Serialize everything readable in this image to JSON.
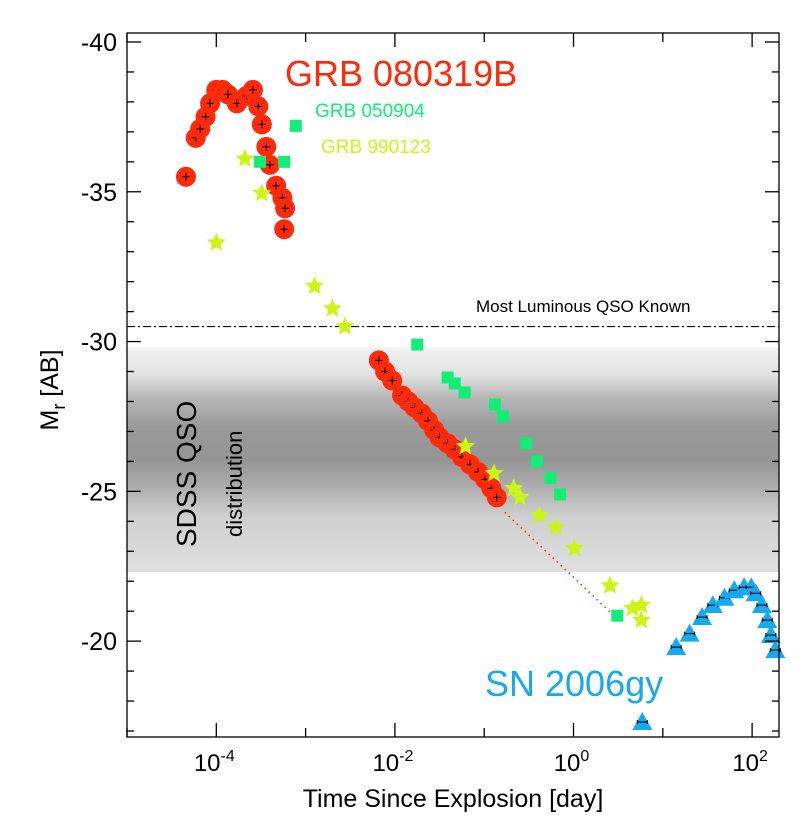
{
  "chart_data": {
    "type": "scatter",
    "xlabel": "Time Since Explosion [day]",
    "ylabel": "M",
    "ylabel_sub": "r",
    "ylabel_suffix": " [AB]",
    "x_scale": "log",
    "xlim": [
      1e-05,
      200
    ],
    "ylim": [
      -16.8,
      -40.3
    ],
    "x_ticks": [
      {
        "base": "10",
        "exp": "-4",
        "value": 0.0001
      },
      {
        "base": "10",
        "exp": "-2",
        "value": 0.01
      },
      {
        "base": "10",
        "exp": "0",
        "value": 1
      },
      {
        "base": "10",
        "exp": "2",
        "value": 100
      }
    ],
    "y_ticks": [
      -40,
      -35,
      -30,
      -25,
      -20
    ],
    "grid": false,
    "annotations": {
      "qso_line": {
        "label": "Most Luminous QSO Known",
        "y": -30.5
      },
      "qso_band": {
        "label_main": "SDSS QSO",
        "label_sub": "distribution",
        "y_range": [
          -29.8,
          -22.3
        ],
        "peak_range": [
          -28,
          -25.3
        ]
      }
    },
    "series": [
      {
        "name": "GRB 080319B",
        "color": "#ff2a0a",
        "marker": "circle",
        "points": [
          [
            -4.34,
            -35.5
          ],
          [
            -4.23,
            -36.8
          ],
          [
            -4.18,
            -37.1
          ],
          [
            -4.12,
            -37.5
          ],
          [
            -4.07,
            -37.95
          ],
          [
            -4.0,
            -38.4
          ],
          [
            -3.93,
            -38.4
          ],
          [
            -3.87,
            -38.25
          ],
          [
            -3.77,
            -37.95
          ],
          [
            -3.66,
            -38.2
          ],
          [
            -3.59,
            -38.4
          ],
          [
            -3.53,
            -37.85
          ],
          [
            -3.49,
            -37.25
          ],
          [
            -3.44,
            -36.5
          ],
          [
            -3.4,
            -35.9
          ],
          [
            -3.33,
            -35.2
          ],
          [
            -3.26,
            -34.8
          ],
          [
            -3.23,
            -34.45
          ],
          [
            -3.24,
            -33.75
          ],
          [
            -2.18,
            -29.37
          ],
          [
            -2.11,
            -29.0
          ],
          [
            -2.03,
            -28.7
          ],
          [
            -1.92,
            -28.2
          ],
          [
            -1.85,
            -28.0
          ],
          [
            -1.78,
            -27.8
          ],
          [
            -1.7,
            -27.6
          ],
          [
            -1.63,
            -27.35
          ],
          [
            -1.56,
            -27.05
          ],
          [
            -1.5,
            -26.8
          ],
          [
            -1.41,
            -26.6
          ],
          [
            -1.33,
            -26.4
          ],
          [
            -1.25,
            -26.15
          ],
          [
            -1.16,
            -25.9
          ],
          [
            -1.07,
            -25.65
          ],
          [
            -0.99,
            -25.4
          ],
          [
            -0.92,
            -25.1
          ],
          [
            -0.86,
            -24.8
          ]
        ],
        "extrapolation": [
          [
            -0.77,
            -24.3
          ],
          [
            0.47,
            -20.8
          ]
        ],
        "x_note": "x values are log10(day)"
      },
      {
        "name": "GRB 050904",
        "color": "#11ee77",
        "marker": "square",
        "points": [
          [
            -3.11,
            -37.2
          ],
          [
            -3.51,
            -36.0
          ],
          [
            -3.24,
            -36.0
          ],
          [
            -1.75,
            -29.9
          ],
          [
            -1.41,
            -28.8
          ],
          [
            -1.33,
            -28.6
          ],
          [
            -1.22,
            -28.3
          ],
          [
            -0.88,
            -27.9
          ],
          [
            -0.79,
            -27.5
          ],
          [
            -0.53,
            -26.6
          ],
          [
            -0.41,
            -26.0
          ],
          [
            -0.26,
            -25.45
          ],
          [
            -0.15,
            -24.9
          ],
          [
            0.49,
            -20.85
          ]
        ]
      },
      {
        "name": "GRB 990123",
        "color": "#ccf514",
        "marker": "star",
        "points": [
          [
            -4.0,
            -33.3
          ],
          [
            -3.68,
            -36.1
          ],
          [
            -3.49,
            -34.95
          ],
          [
            -2.9,
            -31.85
          ],
          [
            -2.7,
            -31.1
          ],
          [
            -2.56,
            -30.5
          ],
          [
            -1.21,
            -26.5
          ],
          [
            -0.89,
            -25.6
          ],
          [
            -0.67,
            -25.1
          ],
          [
            -0.6,
            -24.8
          ],
          [
            -0.38,
            -24.2
          ],
          [
            -0.2,
            -23.8
          ],
          [
            0.01,
            -23.1
          ],
          [
            0.41,
            -21.85
          ],
          [
            0.66,
            -21.1
          ],
          [
            0.76,
            -21.2
          ],
          [
            0.76,
            -20.7
          ]
        ]
      },
      {
        "name": "SN 2006gy",
        "color": "#18a8ee",
        "marker": "triangle",
        "points": [
          [
            0.77,
            -17.3
          ],
          [
            1.15,
            -19.8
          ],
          [
            1.3,
            -20.25
          ],
          [
            1.44,
            -20.8
          ],
          [
            1.56,
            -21.2
          ],
          [
            1.69,
            -21.45
          ],
          [
            1.8,
            -21.7
          ],
          [
            1.91,
            -21.8
          ],
          [
            1.99,
            -21.8
          ],
          [
            2.04,
            -21.6
          ],
          [
            2.11,
            -21.2
          ],
          [
            2.17,
            -20.7
          ],
          [
            2.21,
            -20.2
          ],
          [
            2.26,
            -19.7
          ]
        ]
      }
    ]
  }
}
